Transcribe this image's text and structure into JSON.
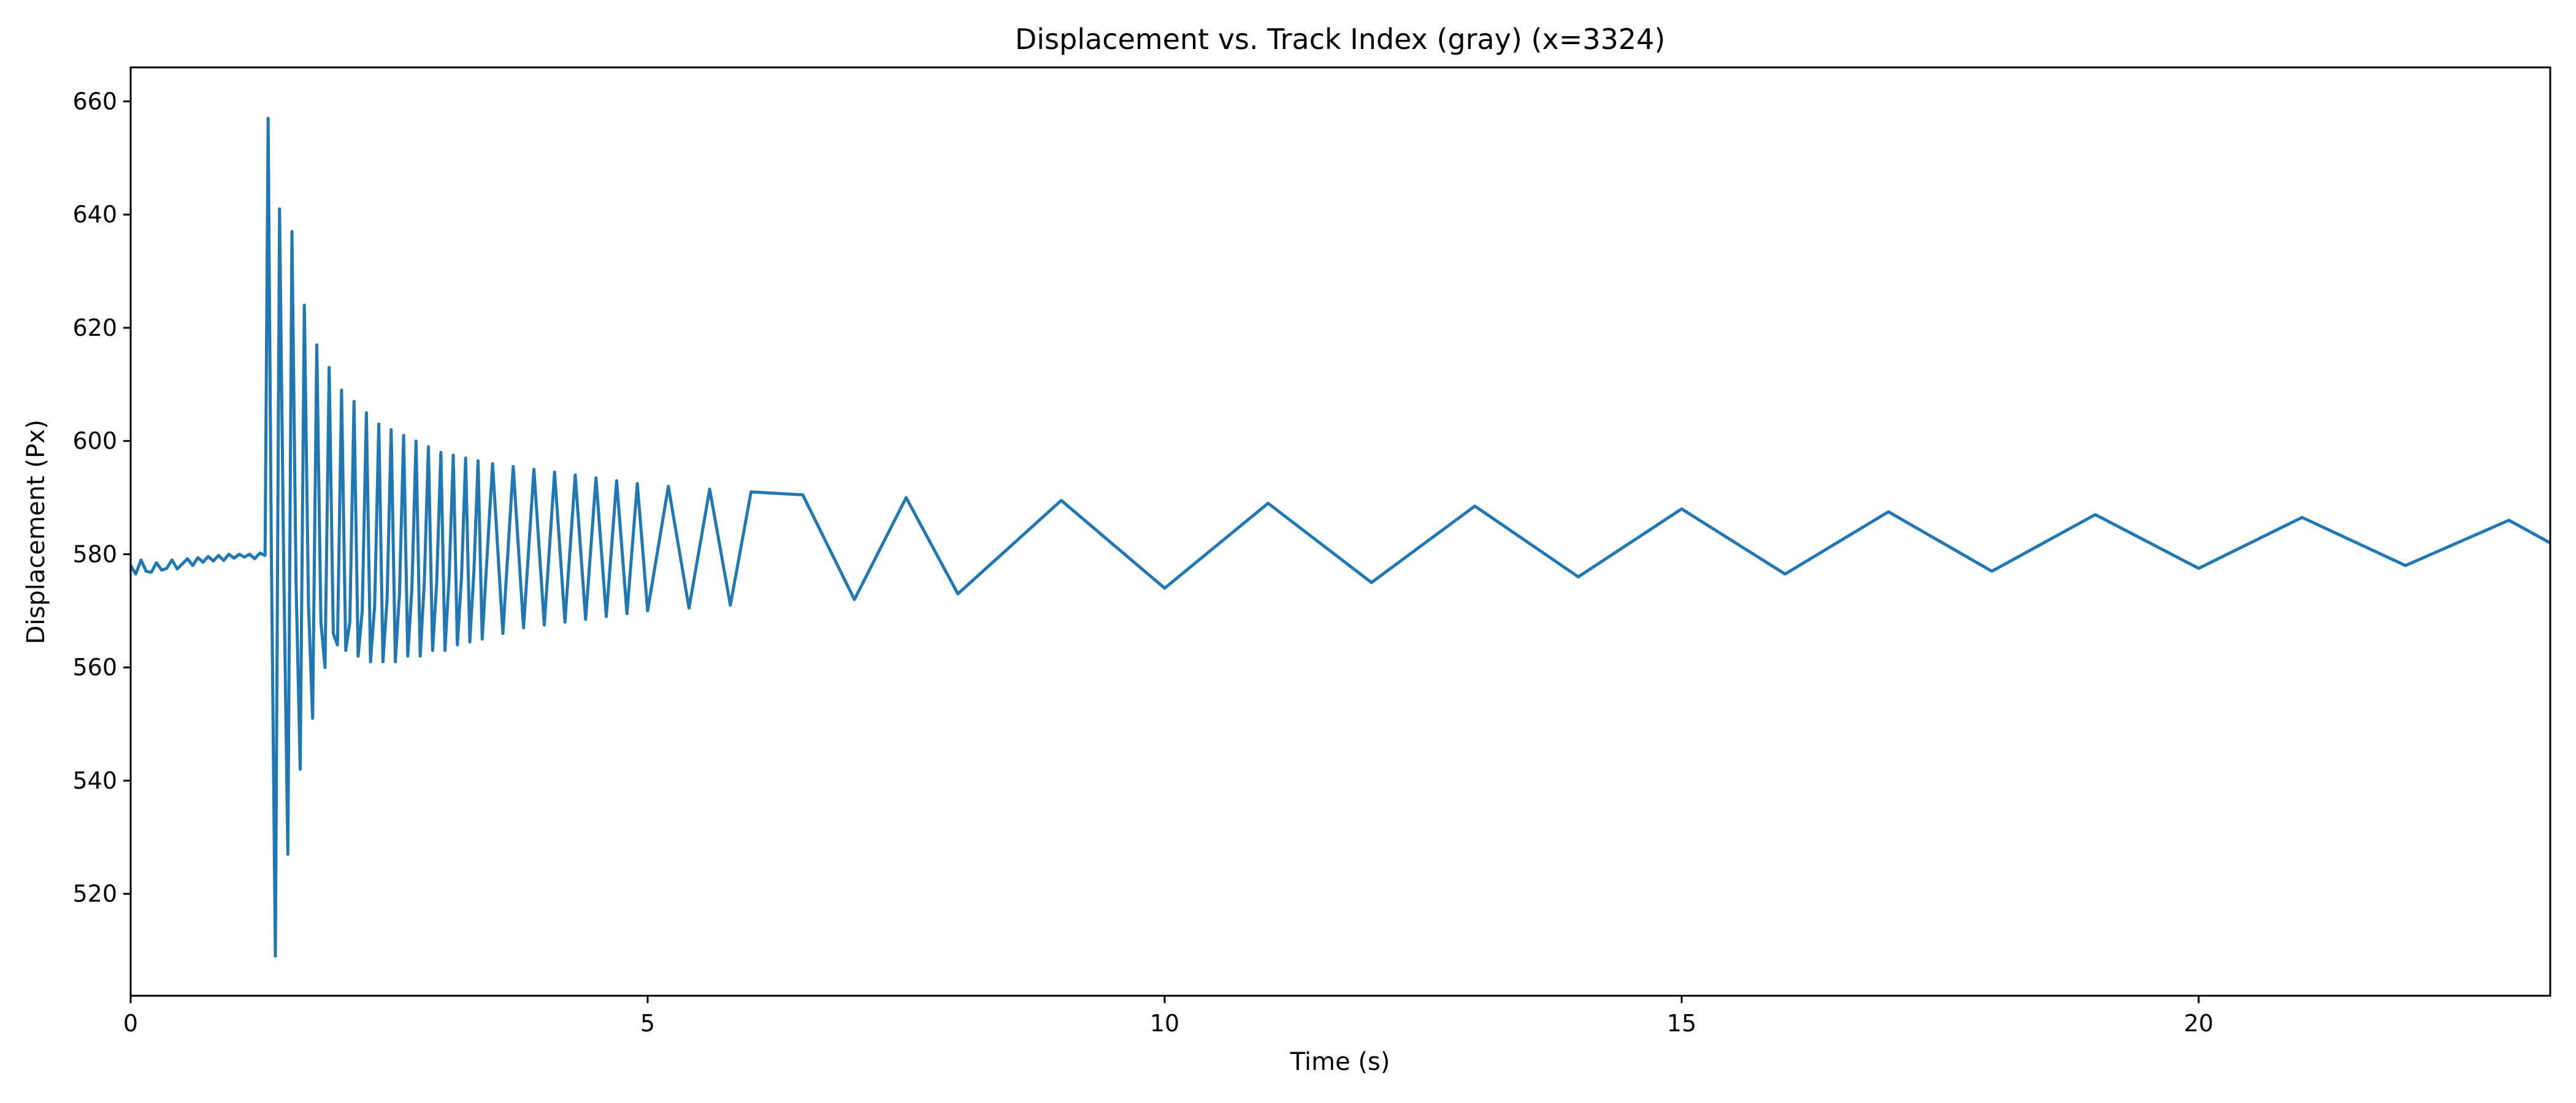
{
  "chart_data": {
    "type": "line",
    "title": "Displacement vs. Track Index (gray) (x=3324)",
    "xlabel": "Time (s)",
    "ylabel": "Displacement (Px)",
    "xlim": [
      0,
      23.4
    ],
    "ylim": [
      502,
      666
    ],
    "xticks": [
      0,
      5,
      10,
      15,
      20
    ],
    "xtick_labels": [
      "0",
      "5",
      "10",
      "15",
      "20"
    ],
    "yticks": [
      520,
      540,
      560,
      580,
      600,
      620,
      640,
      660
    ],
    "ytick_labels": [
      "520",
      "540",
      "560",
      "580",
      "600",
      "620",
      "640",
      "660"
    ],
    "grid": false,
    "series": [
      {
        "name": "displacement",
        "color": "#1f77b4",
        "x": [
          0.0,
          0.05,
          0.1,
          0.15,
          0.2,
          0.25,
          0.3,
          0.35,
          0.4,
          0.45,
          0.5,
          0.55,
          0.6,
          0.65,
          0.7,
          0.75,
          0.8,
          0.85,
          0.9,
          0.95,
          1.0,
          1.05,
          1.1,
          1.15,
          1.2,
          1.25,
          1.3,
          1.33,
          1.36,
          1.4,
          1.44,
          1.48,
          1.52,
          1.56,
          1.6,
          1.64,
          1.68,
          1.72,
          1.76,
          1.8,
          1.84,
          1.88,
          1.92,
          1.96,
          2.0,
          2.04,
          2.08,
          2.12,
          2.16,
          2.2,
          2.24,
          2.28,
          2.32,
          2.36,
          2.4,
          2.44,
          2.48,
          2.52,
          2.56,
          2.6,
          2.64,
          2.68,
          2.72,
          2.76,
          2.8,
          2.84,
          2.88,
          2.92,
          2.96,
          3.0,
          3.04,
          3.08,
          3.12,
          3.16,
          3.2,
          3.24,
          3.28,
          3.32,
          3.36,
          3.4,
          3.5,
          3.6,
          3.7,
          3.8,
          3.9,
          4.0,
          4.1,
          4.2,
          4.3,
          4.4,
          4.5,
          4.6,
          4.7,
          4.8,
          4.9,
          5.0,
          5.2,
          5.4,
          5.6,
          5.8,
          6.0,
          6.5,
          7.0,
          7.5,
          8.0,
          9.0,
          10.0,
          11.0,
          12.0,
          13.0,
          14.0,
          15.0,
          16.0,
          17.0,
          18.0,
          19.0,
          20.0,
          21.0,
          22.0,
          23.0,
          23.4
        ],
        "y": [
          578,
          576.5,
          579,
          577,
          576.8,
          578.5,
          577.2,
          577.5,
          579,
          577.4,
          578.3,
          579.2,
          578,
          579.4,
          578.6,
          579.6,
          578.8,
          579.8,
          578.9,
          580,
          579.3,
          580,
          579.5,
          580,
          579.2,
          580.2,
          579.8,
          657,
          582,
          509,
          641,
          579,
          527,
          637,
          575,
          542,
          624,
          571,
          551,
          617,
          568,
          560,
          613,
          566,
          564,
          609,
          563,
          568,
          607,
          562,
          570,
          605,
          561,
          571,
          603,
          561,
          572,
          602,
          561,
          573,
          601,
          562,
          574,
          600,
          562,
          575,
          599,
          563,
          575,
          598,
          563,
          576,
          597.5,
          564,
          576,
          597,
          564.5,
          577,
          596.5,
          565,
          596,
          566,
          595.5,
          567,
          595,
          567.5,
          594.5,
          568,
          594,
          568.5,
          593.5,
          569,
          593,
          569.5,
          592.5,
          570,
          592,
          570.5,
          591.5,
          571,
          591,
          590.5,
          572,
          590,
          573,
          589.5,
          574,
          589,
          575,
          588.5,
          576,
          588,
          576.5,
          587.5,
          577,
          587,
          577.5,
          586.5,
          578,
          586,
          582
        ]
      }
    ]
  }
}
